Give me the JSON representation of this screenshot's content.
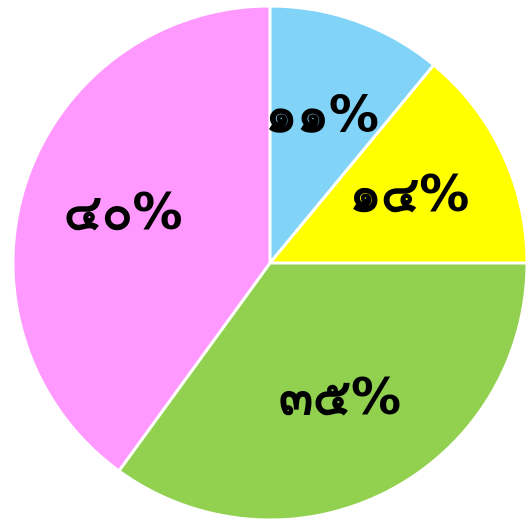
{
  "chart_data": {
    "type": "pie",
    "categories": [
      null,
      null,
      null,
      null
    ],
    "values": [
      11,
      14,
      35,
      40
    ],
    "value_labels": [
      "๑๑%",
      "๑๔%",
      "๓๕%",
      "๔๐%"
    ],
    "colors": [
      "#81d4f7",
      "#ffff00",
      "#92d050",
      "#ff99ff"
    ],
    "start_angle": 0,
    "direction": "clockwise"
  }
}
